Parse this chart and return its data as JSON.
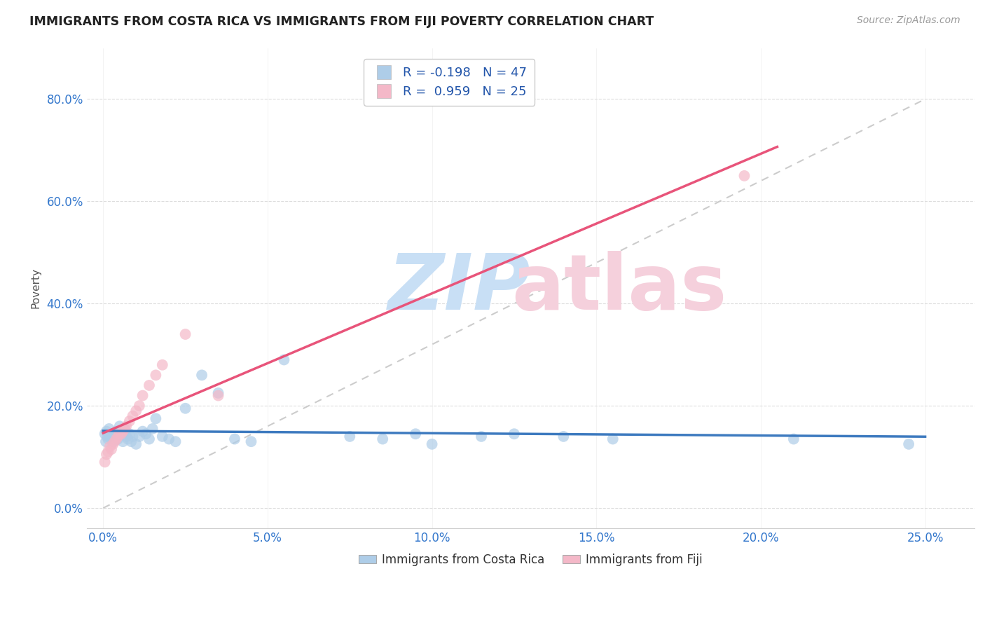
{
  "title": "IMMIGRANTS FROM COSTA RICA VS IMMIGRANTS FROM FIJI POVERTY CORRELATION CHART",
  "source": "Source: ZipAtlas.com",
  "xlabel_ticks": [
    "0.0%",
    "5.0%",
    "10.0%",
    "15.0%",
    "20.0%",
    "25.0%"
  ],
  "xlabel_vals": [
    0.0,
    5.0,
    10.0,
    15.0,
    20.0,
    25.0
  ],
  "ylabel_ticks": [
    "0.0%",
    "20.0%",
    "40.0%",
    "60.0%",
    "80.0%"
  ],
  "ylabel_vals": [
    0.0,
    20.0,
    40.0,
    60.0,
    80.0
  ],
  "xlim": [
    -0.5,
    26.5
  ],
  "ylim": [
    -4.0,
    90.0
  ],
  "legend_r1": "R = -0.198",
  "legend_n1": "N = 47",
  "legend_r2": "R =  0.959",
  "legend_n2": "N = 25",
  "blue_color": "#aecde8",
  "pink_color": "#f4b8c8",
  "blue_line_color": "#3d7abf",
  "pink_line_color": "#e8547a",
  "ref_line_color": "#cccccc",
  "costa_rica_x": [
    0.05,
    0.08,
    0.1,
    0.12,
    0.15,
    0.18,
    0.2,
    0.25,
    0.3,
    0.35,
    0.4,
    0.45,
    0.5,
    0.55,
    0.6,
    0.65,
    0.7,
    0.75,
    0.8,
    0.85,
    0.9,
    1.0,
    1.1,
    1.2,
    1.3,
    1.4,
    1.5,
    1.6,
    1.8,
    2.0,
    2.2,
    2.5,
    3.0,
    3.5,
    4.0,
    4.5,
    5.5,
    7.5,
    8.5,
    9.5,
    10.0,
    11.5,
    12.5,
    14.0,
    15.5,
    21.0,
    24.5
  ],
  "costa_rica_y": [
    14.5,
    13.0,
    15.0,
    14.0,
    13.5,
    15.5,
    14.0,
    14.5,
    13.0,
    14.5,
    15.0,
    13.5,
    16.0,
    14.5,
    13.0,
    15.5,
    14.0,
    13.5,
    14.5,
    13.0,
    14.0,
    12.5,
    14.0,
    15.0,
    14.5,
    13.5,
    15.5,
    17.5,
    14.0,
    13.5,
    13.0,
    19.5,
    26.0,
    22.5,
    13.5,
    13.0,
    29.0,
    14.0,
    13.5,
    14.5,
    12.5,
    14.0,
    14.5,
    14.0,
    13.5,
    13.5,
    12.5
  ],
  "fiji_x": [
    0.05,
    0.1,
    0.15,
    0.2,
    0.25,
    0.3,
    0.35,
    0.4,
    0.45,
    0.5,
    0.55,
    0.6,
    0.65,
    0.7,
    0.8,
    0.9,
    1.0,
    1.1,
    1.2,
    1.4,
    1.6,
    1.8,
    2.5,
    3.5,
    19.5
  ],
  "fiji_y": [
    9.0,
    10.5,
    11.0,
    12.0,
    11.5,
    12.5,
    13.0,
    13.5,
    14.0,
    14.5,
    14.5,
    15.0,
    15.5,
    16.0,
    17.0,
    18.0,
    19.0,
    20.0,
    22.0,
    24.0,
    26.0,
    28.0,
    34.0,
    22.0,
    65.0
  ]
}
